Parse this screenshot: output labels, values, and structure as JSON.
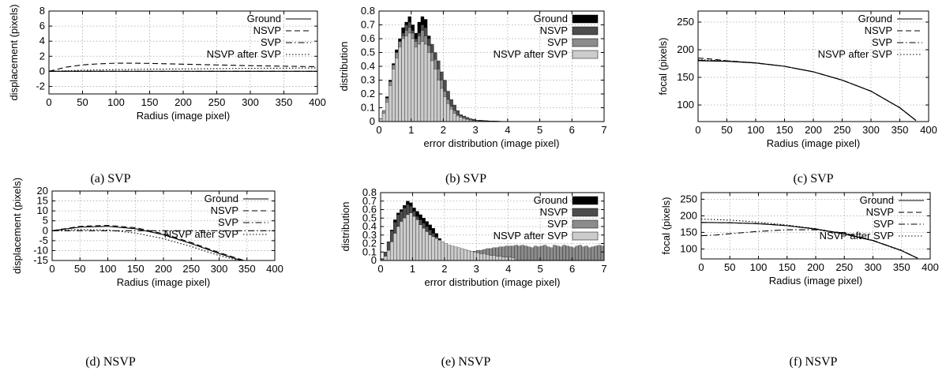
{
  "chart_data": [
    {
      "id": "a",
      "type": "line",
      "caption": "(a) SVP",
      "xlabel": "Radius (image pixel)",
      "ylabel": "displacement (pixels)",
      "xlim": [
        0,
        400
      ],
      "ylim": [
        -3,
        8
      ],
      "xticks": [
        0,
        50,
        100,
        150,
        200,
        250,
        300,
        350,
        400
      ],
      "yticks": [
        -2,
        0,
        2,
        4,
        6,
        8
      ],
      "grid": true,
      "legend_position": "top-right",
      "series": [
        {
          "name": "Ground",
          "dash": "solid",
          "x": [
            0,
            400
          ],
          "y": [
            0,
            0
          ]
        },
        {
          "name": "NSVP",
          "dash": "dashed",
          "x": [
            0,
            25,
            50,
            75,
            100,
            125,
            150,
            200,
            250,
            300,
            350,
            400
          ],
          "y": [
            0,
            0.55,
            0.85,
            1.0,
            1.08,
            1.08,
            1.05,
            0.95,
            0.85,
            0.75,
            0.68,
            0.62
          ]
        },
        {
          "name": "SVP",
          "dash": "dashdot",
          "x": [
            0,
            400
          ],
          "y": [
            0,
            0
          ]
        },
        {
          "name": "NSVP after SVP",
          "dash": "dotted",
          "x": [
            0,
            50,
            100,
            150,
            200,
            250,
            300,
            350,
            400
          ],
          "y": [
            0,
            0.15,
            0.22,
            0.28,
            0.32,
            0.36,
            0.4,
            0.42,
            0.45
          ]
        }
      ]
    },
    {
      "id": "b",
      "type": "histogram",
      "caption": "(b) SVP",
      "xlabel": "error distribution (image pixel)",
      "ylabel": "distribution",
      "xlim": [
        0,
        7
      ],
      "ylim": [
        0,
        0.8
      ],
      "xticks": [
        0,
        1,
        2,
        3,
        4,
        5,
        6,
        7
      ],
      "yticks": [
        0,
        0.1,
        0.2,
        0.3,
        0.4,
        0.5,
        0.6,
        0.7,
        0.8
      ],
      "grid": true,
      "legend_position": "top-right",
      "bin_width": 0.1,
      "series": [
        {
          "name": "Ground",
          "fill": "#000000",
          "values": [
            0.02,
            0.08,
            0.18,
            0.3,
            0.42,
            0.52,
            0.6,
            0.68,
            0.72,
            0.76,
            0.7,
            0.64,
            0.72,
            0.76,
            0.74,
            0.62,
            0.55,
            0.48,
            0.38,
            0.3,
            0.22,
            0.16,
            0.12,
            0.08,
            0.06,
            0.04,
            0.03,
            0.02,
            0.02,
            0.015,
            0.01,
            0.01,
            0.008,
            0.006,
            0.005,
            0.005,
            0.004,
            0.003,
            0.002,
            0.002,
            0.001,
            0.001
          ]
        },
        {
          "name": "NSVP",
          "fill": "#4d4d4d",
          "values": [
            0.02,
            0.07,
            0.16,
            0.28,
            0.4,
            0.5,
            0.56,
            0.64,
            0.7,
            0.72,
            0.66,
            0.6,
            0.64,
            0.7,
            0.68,
            0.6,
            0.56,
            0.5,
            0.44,
            0.36,
            0.3,
            0.22,
            0.16,
            0.12,
            0.08,
            0.05,
            0.04,
            0.03,
            0.02,
            0.015,
            0.01,
            0.01,
            0.008,
            0.006,
            0.005,
            0.004,
            0.003,
            0.002,
            0.002,
            0.001,
            0.001,
            0.001
          ]
        },
        {
          "name": "SVP",
          "fill": "#8c8c8c",
          "values": [
            0.02,
            0.08,
            0.17,
            0.29,
            0.41,
            0.5,
            0.58,
            0.62,
            0.66,
            0.68,
            0.64,
            0.58,
            0.62,
            0.66,
            0.62,
            0.55,
            0.5,
            0.45,
            0.38,
            0.3,
            0.22,
            0.16,
            0.11,
            0.08,
            0.05,
            0.04,
            0.03,
            0.02,
            0.015,
            0.01,
            0.01,
            0.008,
            0.005,
            0.004,
            0.003,
            0.002,
            0.002,
            0.001,
            0.001,
            0.001,
            0.0,
            0.0
          ]
        },
        {
          "name": "NSVP after SVP",
          "fill": "#cccccc",
          "values": [
            0.02,
            0.06,
            0.14,
            0.26,
            0.38,
            0.46,
            0.54,
            0.6,
            0.62,
            0.64,
            0.6,
            0.54,
            0.56,
            0.58,
            0.56,
            0.5,
            0.44,
            0.38,
            0.3,
            0.24,
            0.18,
            0.13,
            0.09,
            0.06,
            0.04,
            0.03,
            0.02,
            0.015,
            0.01,
            0.008,
            0.006,
            0.005,
            0.004,
            0.003,
            0.002,
            0.002,
            0.001,
            0.001,
            0.001,
            0.0,
            0.0,
            0.0
          ]
        }
      ]
    },
    {
      "id": "c",
      "type": "line",
      "caption": "(c) SVP",
      "xlabel": "Radius (image pixel)",
      "ylabel": "focal (pixels)",
      "xlim": [
        0,
        400
      ],
      "ylim": [
        70,
        270
      ],
      "xticks": [
        0,
        50,
        100,
        150,
        200,
        250,
        300,
        350,
        400
      ],
      "yticks": [
        100,
        150,
        200,
        250
      ],
      "grid": true,
      "legend_position": "top-right",
      "series": [
        {
          "name": "Ground",
          "dash": "solid",
          "x": [
            0,
            50,
            100,
            150,
            200,
            250,
            300,
            350,
            378
          ],
          "y": [
            180,
            179,
            176,
            170,
            160,
            145,
            125,
            95,
            72
          ]
        },
        {
          "name": "NSVP",
          "dash": "dashed",
          "x": [
            0,
            25,
            50,
            100,
            150,
            200,
            250,
            300,
            350,
            378
          ],
          "y": [
            185,
            183,
            180,
            176,
            170,
            160,
            145,
            125,
            95,
            72
          ]
        },
        {
          "name": "SVP",
          "dash": "dashdot",
          "x": [
            0,
            50,
            100,
            150,
            200,
            250,
            300,
            350,
            378
          ],
          "y": [
            181,
            179.5,
            176,
            170,
            160,
            145,
            125,
            95,
            72
          ]
        },
        {
          "name": "NSVP after SVP",
          "dash": "dotted",
          "x": [
            0,
            50,
            100,
            150,
            200,
            250,
            300,
            350,
            378
          ],
          "y": [
            182,
            180,
            176.5,
            170,
            160,
            145,
            125,
            95,
            72
          ]
        }
      ]
    },
    {
      "id": "d",
      "type": "line",
      "caption": "(d) NSVP",
      "xlabel": "Radius (image pixel)",
      "ylabel": "displacement (pixels)",
      "xlim": [
        0,
        400
      ],
      "ylim": [
        -15,
        20
      ],
      "xticks": [
        0,
        50,
        100,
        150,
        200,
        250,
        300,
        350,
        400
      ],
      "yticks": [
        -15,
        -10,
        -5,
        0,
        5,
        10,
        15,
        20
      ],
      "grid": true,
      "legend_position": "top-right",
      "series": [
        {
          "name": "Ground",
          "dash": "solid",
          "x": [
            0,
            50,
            100,
            150,
            200,
            250,
            300,
            340
          ],
          "y": [
            0,
            1.8,
            2.2,
            1.0,
            -2.0,
            -6.5,
            -11.5,
            -15.0
          ]
        },
        {
          "name": "NSVP",
          "dash": "dashed",
          "x": [
            0,
            50,
            100,
            150,
            200,
            250,
            300,
            345
          ],
          "y": [
            0,
            2.2,
            2.7,
            1.5,
            -1.5,
            -6.0,
            -11.0,
            -15.0
          ]
        },
        {
          "name": "SVP",
          "dash": "dashdot",
          "x": [
            0,
            400
          ],
          "y": [
            0,
            0
          ]
        },
        {
          "name": "NSVP after SVP",
          "dash": "dotted",
          "x": [
            0,
            50,
            100,
            150,
            200,
            250,
            300,
            335
          ],
          "y": [
            0,
            0.6,
            0.3,
            -1.2,
            -4.0,
            -8.0,
            -12.5,
            -15.0
          ]
        }
      ]
    },
    {
      "id": "e",
      "type": "histogram",
      "caption": "(e) NSVP",
      "xlabel": "error distribution (image pixel)",
      "ylabel": "distribution",
      "xlim": [
        0,
        7
      ],
      "ylim": [
        0,
        0.8
      ],
      "xticks": [
        0,
        1,
        2,
        3,
        4,
        5,
        6,
        7
      ],
      "yticks": [
        0,
        0.1,
        0.2,
        0.3,
        0.4,
        0.5,
        0.6,
        0.7,
        0.8
      ],
      "grid": true,
      "legend_position": "top-right",
      "bin_width": 0.1,
      "series": [
        {
          "name": "Ground",
          "fill": "#000000",
          "values": [
            0.02,
            0.1,
            0.22,
            0.36,
            0.48,
            0.56,
            0.6,
            0.65,
            0.7,
            0.68,
            0.62,
            0.58,
            0.54,
            0.5,
            0.46,
            0.42,
            0.38,
            0.32,
            0.26,
            0.2,
            0.16,
            0.12,
            0.09,
            0.07,
            0.05,
            0.04,
            0.03,
            0.02,
            0.015,
            0.012,
            0.01,
            0.008,
            0.006,
            0.005,
            0.004,
            0.003,
            0.003,
            0.002,
            0.002,
            0.001,
            0.001,
            0.001
          ]
        },
        {
          "name": "NSVP",
          "fill": "#4d4d4d",
          "values": [
            0.02,
            0.1,
            0.22,
            0.35,
            0.45,
            0.54,
            0.58,
            0.62,
            0.66,
            0.64,
            0.58,
            0.52,
            0.48,
            0.44,
            0.4,
            0.36,
            0.32,
            0.28,
            0.22,
            0.18,
            0.14,
            0.1,
            0.08,
            0.06,
            0.04,
            0.03,
            0.02,
            0.015,
            0.012,
            0.01,
            0.008,
            0.006,
            0.005,
            0.004,
            0.003,
            0.002,
            0.002,
            0.001,
            0.001,
            0.001,
            0.0,
            0.0
          ]
        },
        {
          "name": "SVP",
          "fill": "#8c8c8c",
          "values": [
            0.0,
            0.0,
            0.0,
            0.01,
            0.01,
            0.01,
            0.01,
            0.01,
            0.02,
            0.02,
            0.02,
            0.02,
            0.02,
            0.03,
            0.03,
            0.03,
            0.03,
            0.04,
            0.04,
            0.05,
            0.05,
            0.06,
            0.06,
            0.07,
            0.07,
            0.08,
            0.09,
            0.1,
            0.1,
            0.11,
            0.12,
            0.12,
            0.13,
            0.14,
            0.14,
            0.15,
            0.15,
            0.16,
            0.16,
            0.17,
            0.17,
            0.17,
            0.18,
            0.17,
            0.18,
            0.17,
            0.16,
            0.15,
            0.17,
            0.16,
            0.17,
            0.18,
            0.16,
            0.15,
            0.18,
            0.17,
            0.16,
            0.18,
            0.17,
            0.16,
            0.15,
            0.17,
            0.18,
            0.16,
            0.17,
            0.15,
            0.16,
            0.17,
            0.18,
            0.17
          ]
        },
        {
          "name": "NSVP after SVP",
          "fill": "#cccccc",
          "values": [
            0.01,
            0.05,
            0.12,
            0.22,
            0.32,
            0.4,
            0.46,
            0.5,
            0.54,
            0.56,
            0.52,
            0.48,
            0.42,
            0.38,
            0.34,
            0.3,
            0.28,
            0.26,
            0.24,
            0.22,
            0.2,
            0.18,
            0.17,
            0.16,
            0.15,
            0.14,
            0.13,
            0.12,
            0.11,
            0.1,
            0.09,
            0.08,
            0.08,
            0.07,
            0.06,
            0.06,
            0.05,
            0.05,
            0.04,
            0.04,
            0.04,
            0.03
          ]
        }
      ]
    },
    {
      "id": "f",
      "type": "line",
      "caption": "(f) NSVP",
      "xlabel": "Radius (image pixel)",
      "ylabel": "focal (pixels)",
      "xlim": [
        0,
        400
      ],
      "ylim": [
        70,
        270
      ],
      "xticks": [
        0,
        50,
        100,
        150,
        200,
        250,
        300,
        350,
        400
      ],
      "yticks": [
        100,
        150,
        200,
        250
      ],
      "grid": true,
      "legend_position": "top-right",
      "series": [
        {
          "name": "Ground",
          "dash": "solid",
          "x": [
            0,
            50,
            100,
            150,
            200,
            250,
            300,
            350,
            378
          ],
          "y": [
            180,
            179,
            176,
            170,
            160,
            145,
            125,
            95,
            72
          ]
        },
        {
          "name": "NSVP",
          "dash": "dashed",
          "x": [
            0,
            50,
            100,
            150,
            200,
            250,
            300,
            350,
            378
          ],
          "y": [
            180,
            179,
            176.5,
            170.5,
            160.5,
            145,
            125,
            95,
            72
          ]
        },
        {
          "name": "SVP",
          "dash": "dashdot",
          "x": [
            0,
            25,
            50,
            100,
            150,
            200,
            250,
            300,
            350,
            378
          ],
          "y": [
            140,
            142,
            146,
            153,
            158,
            158,
            148,
            126,
            95,
            72
          ]
        },
        {
          "name": "NSVP after SVP",
          "dash": "dotted",
          "x": [
            0,
            50,
            100,
            150,
            200,
            250,
            300,
            350,
            378
          ],
          "y": [
            190,
            187,
            181,
            172,
            161,
            146,
            126,
            96,
            72
          ]
        }
      ]
    }
  ]
}
